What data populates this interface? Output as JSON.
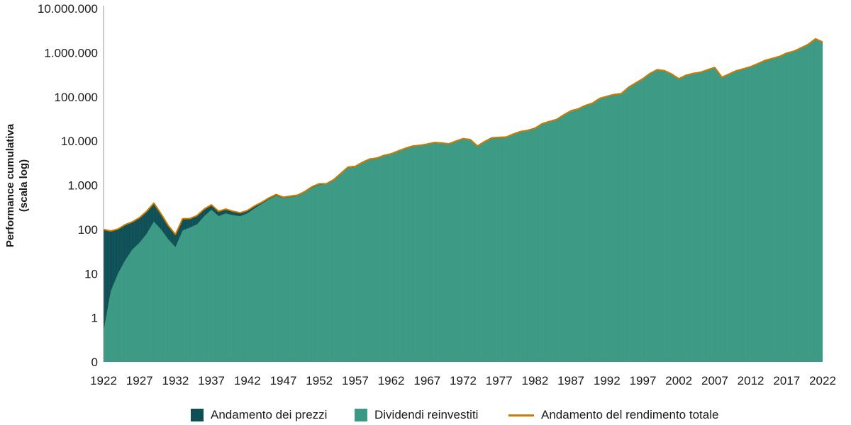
{
  "chart_data": {
    "type": "area",
    "ylabel": [
      "Performance cumulativa",
      "(scala log)"
    ],
    "xlabel": "",
    "y_scale": "log",
    "grid": false,
    "legend_position": "bottom",
    "ylim": [
      0.1,
      10000000
    ],
    "xlim": [
      1922,
      2022
    ],
    "y_ticks": [
      {
        "value": 0.1,
        "label": "0"
      },
      {
        "value": 1,
        "label": "1"
      },
      {
        "value": 10,
        "label": "10"
      },
      {
        "value": 100,
        "label": "100"
      },
      {
        "value": 1000,
        "label": "1.000"
      },
      {
        "value": 10000,
        "label": "10.000"
      },
      {
        "value": 100000,
        "label": "100.000"
      },
      {
        "value": 1000000,
        "label": "1.000.000"
      },
      {
        "value": 10000000,
        "label": "10.000.000"
      }
    ],
    "x_ticks": [
      "1922",
      "1927",
      "1932",
      "1937",
      "1942",
      "1947",
      "1952",
      "1957",
      "1962",
      "1967",
      "1972",
      "1977",
      "1982",
      "1987",
      "1992",
      "1997",
      "2002",
      "2007",
      "2012",
      "2017",
      "2022"
    ],
    "x": [
      1922,
      1923,
      1924,
      1925,
      1926,
      1927,
      1928,
      1929,
      1930,
      1931,
      1932,
      1933,
      1934,
      1935,
      1936,
      1937,
      1938,
      1939,
      1940,
      1941,
      1942,
      1943,
      1944,
      1945,
      1946,
      1947,
      1948,
      1949,
      1950,
      1951,
      1952,
      1953,
      1954,
      1955,
      1956,
      1957,
      1958,
      1959,
      1960,
      1961,
      1962,
      1963,
      1964,
      1965,
      1966,
      1967,
      1968,
      1969,
      1970,
      1971,
      1972,
      1973,
      1974,
      1975,
      1976,
      1977,
      1978,
      1979,
      1980,
      1981,
      1982,
      1983,
      1984,
      1985,
      1986,
      1987,
      1988,
      1989,
      1990,
      1991,
      1992,
      1993,
      1994,
      1995,
      1996,
      1997,
      1998,
      1999,
      2000,
      2001,
      2002,
      2003,
      2004,
      2005,
      2006,
      2007,
      2008,
      2009,
      2010,
      2011,
      2012,
      2013,
      2014,
      2015,
      2016,
      2017,
      2018,
      2019,
      2020,
      2021,
      2022
    ],
    "series": [
      {
        "name": "Andamento dei prezzi",
        "color": "#0d4f55",
        "values": [
          100,
          90,
          100,
          125,
          145,
          180,
          250,
          380,
          220,
          120,
          75,
          170,
          170,
          200,
          280,
          350,
          250,
          280,
          250,
          230,
          260,
          330,
          400,
          500,
          600,
          520,
          550,
          580,
          700,
          900,
          1050,
          1050,
          1300,
          1800,
          2500,
          2600,
          3200,
          3800,
          4000,
          4600,
          5000,
          5800,
          6700,
          7500,
          7800,
          8300,
          9000,
          8800,
          8400,
          9700,
          11000,
          10500,
          7500,
          9500,
          11500,
          11800,
          12000,
          14000,
          16000,
          17000,
          19000,
          24000,
          27000,
          30000,
          38000,
          47000,
          52000,
          62000,
          70000,
          90000,
          100000,
          110000,
          115000,
          160000,
          200000,
          250000,
          330000,
          400000,
          380000,
          320000,
          250000,
          300000,
          330000,
          350000,
          400000,
          450000,
          270000,
          320000,
          380000,
          420000,
          470000,
          550000,
          650000,
          720000,
          800000,
          950000,
          1050000,
          1250000,
          1500000,
          2000000,
          1700000
        ]
      },
      {
        "name": "Dividendi reinvestiti",
        "color": "#3a9982",
        "values": [
          0.5,
          4,
          10,
          20,
          35,
          50,
          80,
          150,
          100,
          60,
          40,
          95,
          110,
          130,
          200,
          280,
          200,
          230,
          210,
          200,
          230,
          300,
          380,
          480,
          580,
          510,
          540,
          570,
          690,
          880,
          1030,
          1040,
          1290,
          1780,
          2480,
          2590,
          3190,
          3790,
          3990,
          4590,
          4990,
          5790,
          6690,
          7490,
          7790,
          8290,
          8990,
          8790,
          8390,
          9690,
          10990,
          10490,
          7490,
          9490,
          11490,
          11790,
          11990,
          13990,
          15990,
          16990,
          18990,
          23990,
          26990,
          29990,
          37990,
          46990,
          51990,
          61990,
          69990,
          89990,
          99990,
          109990,
          114990,
          159990,
          199990,
          249990,
          329990,
          399990,
          379990,
          319990,
          249990,
          299990,
          329990,
          349990,
          399990,
          449990,
          269990,
          319990,
          379990,
          419990,
          469990,
          549990,
          649990,
          719990,
          799990,
          949990,
          1049990,
          1249990,
          1499990,
          1999990,
          1699990
        ]
      },
      {
        "name": "Andamento del rendimento totale",
        "color": "#d27a00",
        "values": [
          100,
          92,
          102,
          128,
          148,
          185,
          258,
          395,
          225,
          123,
          77,
          175,
          176,
          206,
          289,
          361,
          258,
          289,
          258,
          238,
          268,
          340,
          412,
          515,
          618,
          536,
          567,
          598,
          721,
          927,
          1082,
          1082,
          1339,
          1854,
          2575,
          2678,
          3296,
          3914,
          4120,
          4738,
          5150,
          5974,
          6901,
          7725,
          8034,
          8549,
          9270,
          9064,
          8652,
          9991,
          11330,
          10815,
          7725,
          9785,
          11845,
          12154,
          12360,
          14420,
          16480,
          17510,
          19570,
          24720,
          27810,
          30900,
          39140,
          48410,
          53560,
          63860,
          72100,
          92700,
          103000,
          113300,
          118450,
          164800,
          206000,
          257500,
          339900,
          412000,
          391400,
          329600,
          257500,
          309000,
          339900,
          360500,
          412000,
          463500,
          278100,
          329600,
          391400,
          432600,
          484100,
          566500,
          669500,
          741600,
          824000,
          978500,
          1081500,
          1287500,
          1545000,
          2060000,
          1751000
        ]
      }
    ]
  }
}
